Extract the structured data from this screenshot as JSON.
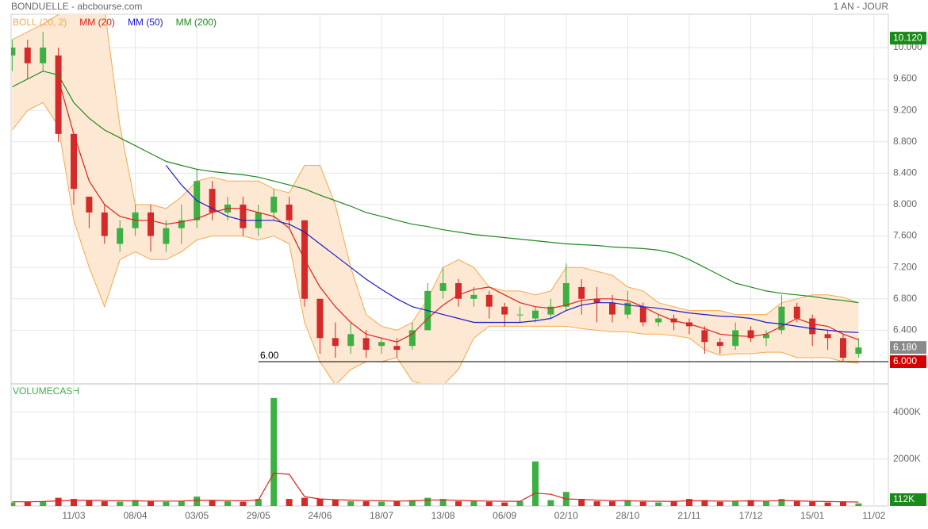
{
  "chart_data": {
    "type": "candlestick",
    "title": "BONDUELLE - abcbourse.com",
    "period": "1 AN - JOUR",
    "categories": [
      null,
      null,
      null,
      null,
      "11/03",
      null,
      null,
      null,
      "08/04",
      null,
      null,
      null,
      "03/05",
      null,
      null,
      null,
      "29/05",
      null,
      null,
      null,
      "24/06",
      null,
      null,
      null,
      "18/07",
      null,
      null,
      null,
      "13/08",
      null,
      null,
      null,
      "06/09",
      null,
      null,
      null,
      "02/10",
      null,
      null,
      null,
      "28/10",
      null,
      null,
      null,
      "21/11",
      null,
      null,
      null,
      "17/12",
      null,
      null,
      null,
      "15/01",
      null,
      null,
      null,
      "11/02"
    ],
    "open": [
      9.9,
      10.0,
      9.8,
      9.9,
      8.9,
      8.1,
      7.9,
      7.5,
      7.7,
      7.9,
      7.5,
      7.7,
      7.8,
      8.2,
      7.9,
      8.0,
      7.7,
      7.9,
      8.0,
      7.8,
      6.8,
      6.3,
      6.2,
      6.3,
      6.2,
      6.2,
      6.2,
      6.4,
      6.9,
      7.0,
      6.8,
      6.85,
      6.7,
      6.6,
      6.55,
      6.6,
      6.7,
      6.95,
      6.8,
      6.75,
      6.6,
      6.7,
      6.5,
      6.55,
      6.5,
      6.4,
      6.25,
      6.2,
      6.4,
      6.3,
      6.4,
      6.7,
      6.55,
      6.35,
      6.3,
      6.1,
      null
    ],
    "high": [
      10.1,
      10.1,
      10.2,
      10.0,
      8.9,
      8.1,
      8.0,
      7.8,
      8.0,
      8.0,
      7.8,
      8.0,
      8.45,
      8.3,
      8.1,
      8.1,
      8.0,
      8.2,
      8.1,
      7.8,
      6.8,
      6.5,
      6.5,
      6.4,
      6.3,
      6.3,
      6.5,
      7.0,
      7.2,
      7.05,
      6.95,
      6.9,
      6.75,
      6.7,
      6.7,
      6.8,
      7.25,
      7.05,
      6.95,
      6.85,
      6.9,
      6.75,
      6.6,
      6.6,
      6.55,
      6.45,
      6.3,
      6.5,
      6.45,
      6.4,
      6.85,
      6.75,
      6.6,
      6.4,
      6.35,
      6.3,
      null
    ],
    "low": [
      9.7,
      9.6,
      9.7,
      8.8,
      8.0,
      7.7,
      7.5,
      7.4,
      7.6,
      7.4,
      7.4,
      7.5,
      7.7,
      7.8,
      7.8,
      7.6,
      7.6,
      7.8,
      7.7,
      6.7,
      6.1,
      6.05,
      6.1,
      6.05,
      6.1,
      6.05,
      6.15,
      6.4,
      6.8,
      6.7,
      6.7,
      6.55,
      6.45,
      6.5,
      6.5,
      6.55,
      6.65,
      6.6,
      6.5,
      6.5,
      6.55,
      6.45,
      6.45,
      6.4,
      6.35,
      6.1,
      6.1,
      6.15,
      6.25,
      6.2,
      6.35,
      6.5,
      6.2,
      6.15,
      6.0,
      6.05,
      null
    ],
    "close": [
      10.0,
      9.8,
      10.0,
      8.9,
      8.2,
      7.9,
      7.6,
      7.7,
      7.9,
      7.6,
      7.7,
      7.8,
      8.3,
      7.9,
      8.0,
      7.7,
      7.9,
      8.1,
      7.8,
      6.8,
      6.3,
      6.2,
      6.35,
      6.15,
      6.25,
      6.15,
      6.4,
      6.9,
      7.0,
      6.8,
      6.85,
      6.7,
      6.6,
      6.6,
      6.65,
      6.7,
      7.0,
      6.8,
      6.75,
      6.6,
      6.75,
      6.5,
      6.55,
      6.5,
      6.45,
      6.25,
      6.2,
      6.4,
      6.3,
      6.35,
      6.7,
      6.55,
      6.35,
      6.3,
      6.05,
      6.18,
      null
    ],
    "up_color": "#3cb043",
    "down_color": "#d42a2a",
    "ylim": [
      5.727,
      10.424
    ],
    "yticks": [
      {
        "value": 6.4,
        "label": "6.400"
      },
      {
        "value": 6.8,
        "label": "6.800"
      },
      {
        "value": 7.2,
        "label": "7.200"
      },
      {
        "value": 7.6,
        "label": "7.600"
      },
      {
        "value": 8.0,
        "label": "8.000"
      },
      {
        "value": 8.4,
        "label": "8.400"
      },
      {
        "value": 8.8,
        "label": "8.800"
      },
      {
        "value": 9.2,
        "label": "9.200"
      },
      {
        "value": 9.6,
        "label": "9.600"
      },
      {
        "value": 10.0,
        "label": "10.000"
      }
    ],
    "grid": true,
    "bollinger": {
      "name": "BOLL (20, 2)",
      "color": "#f5a94e",
      "fill": "#fce8d3",
      "upper": [
        10.1,
        10.2,
        10.3,
        10.42,
        10.8,
        10.9,
        10.5,
        9.0,
        8.0,
        8.0,
        7.95,
        8.1,
        8.3,
        8.35,
        8.3,
        8.3,
        8.3,
        8.2,
        8.15,
        8.5,
        8.5,
        8.0,
        7.2,
        6.6,
        6.45,
        6.4,
        6.5,
        6.8,
        7.2,
        7.3,
        7.2,
        6.95,
        6.9,
        6.9,
        6.85,
        6.9,
        7.2,
        7.2,
        7.15,
        7.1,
        6.95,
        6.9,
        6.75,
        6.7,
        6.65,
        6.65,
        6.65,
        6.6,
        6.6,
        6.6,
        6.75,
        6.8,
        6.85,
        6.85,
        6.82,
        6.75,
        null
      ],
      "lower": [
        8.95,
        9.2,
        9.3,
        9.0,
        7.8,
        7.2,
        6.7,
        7.3,
        7.4,
        7.3,
        7.3,
        7.4,
        7.55,
        7.6,
        7.6,
        7.6,
        7.55,
        7.6,
        7.5,
        6.5,
        6.0,
        5.7,
        5.9,
        6.0,
        6.0,
        6.05,
        5.75,
        5.7,
        5.7,
        5.9,
        6.3,
        6.45,
        6.45,
        6.45,
        6.45,
        6.45,
        6.45,
        6.42,
        6.4,
        6.38,
        6.38,
        6.35,
        6.35,
        6.33,
        6.3,
        6.15,
        6.08,
        6.1,
        6.1,
        6.12,
        6.12,
        6.05,
        6.05,
        6.05,
        6.0,
        5.98,
        null
      ]
    },
    "series": [
      {
        "name": "MM (20)",
        "color": "#e0201c",
        "values": [
          null,
          null,
          null,
          9.6,
          8.9,
          8.3,
          8.0,
          7.85,
          7.8,
          7.8,
          7.75,
          7.78,
          7.82,
          7.9,
          7.95,
          7.95,
          7.9,
          7.85,
          7.7,
          7.3,
          6.95,
          6.7,
          6.5,
          6.35,
          6.3,
          6.25,
          6.35,
          6.55,
          6.72,
          6.85,
          6.92,
          6.95,
          6.85,
          6.75,
          6.7,
          6.68,
          6.72,
          6.78,
          6.8,
          6.8,
          6.78,
          6.7,
          6.6,
          6.52,
          6.48,
          6.42,
          6.35,
          6.33,
          6.32,
          6.35,
          6.45,
          6.55,
          6.48,
          6.45,
          6.35,
          6.28,
          null
        ]
      },
      {
        "name": "MM (50)",
        "color": "#1c1ccc",
        "values": [
          null,
          null,
          null,
          null,
          null,
          null,
          null,
          null,
          null,
          null,
          8.5,
          8.25,
          8.05,
          7.95,
          7.85,
          7.8,
          7.8,
          7.8,
          7.75,
          7.65,
          7.5,
          7.35,
          7.2,
          7.05,
          6.92,
          6.8,
          6.7,
          6.65,
          6.6,
          6.55,
          6.5,
          6.5,
          6.5,
          6.5,
          6.52,
          6.55,
          6.65,
          6.72,
          6.75,
          6.75,
          6.72,
          6.7,
          6.68,
          6.65,
          6.62,
          6.6,
          6.58,
          6.57,
          6.55,
          6.5,
          6.48,
          6.45,
          6.42,
          6.4,
          6.38,
          6.37,
          null
        ]
      },
      {
        "name": "MM (200)",
        "color": "#1f8a1f",
        "values": [
          9.5,
          9.6,
          9.7,
          9.65,
          9.3,
          9.1,
          8.95,
          8.85,
          8.75,
          8.65,
          8.55,
          8.5,
          8.45,
          8.42,
          8.4,
          8.38,
          8.35,
          8.3,
          8.25,
          8.2,
          8.12,
          8.05,
          7.98,
          7.9,
          7.85,
          7.8,
          7.75,
          7.72,
          7.68,
          7.65,
          7.62,
          7.6,
          7.58,
          7.56,
          7.54,
          7.52,
          7.5,
          7.49,
          7.48,
          7.46,
          7.45,
          7.44,
          7.42,
          7.38,
          7.3,
          7.2,
          7.1,
          7.0,
          6.95,
          6.9,
          6.87,
          6.85,
          6.83,
          6.8,
          6.78,
          6.75,
          null
        ]
      }
    ],
    "hline": {
      "value": 6,
      "label": "6.00"
    },
    "price_tags": [
      {
        "value": 10.12,
        "label": "10.120",
        "color": "#1a8a1a"
      },
      {
        "value": 6.18,
        "label": "6.180",
        "color": "#8a8a8a"
      },
      {
        "value": 6,
        "label": "6.000",
        "color": "#d40000"
      }
    ],
    "volume": {
      "title": "VOLUMECASH",
      "values": [
        150,
        180,
        200,
        350,
        300,
        250,
        200,
        180,
        250,
        200,
        180,
        220,
        400,
        250,
        200,
        180,
        300,
        4600,
        300,
        350,
        300,
        250,
        200,
        200,
        180,
        200,
        250,
        350,
        300,
        200,
        200,
        180,
        150,
        200,
        1900,
        250,
        600,
        300,
        200,
        200,
        250,
        180,
        150,
        200,
        300,
        250,
        180,
        200,
        250,
        200,
        300,
        200,
        180,
        150,
        200,
        112,
        null
      ],
      "ma_values": [
        180,
        180,
        190,
        220,
        240,
        240,
        230,
        220,
        220,
        210,
        210,
        210,
        240,
        240,
        230,
        220,
        250,
        1400,
        1350,
        400,
        300,
        270,
        250,
        230,
        220,
        210,
        220,
        250,
        260,
        240,
        220,
        210,
        200,
        200,
        550,
        500,
        300,
        280,
        250,
        230,
        220,
        210,
        200,
        200,
        220,
        220,
        210,
        210,
        220,
        210,
        230,
        220,
        200,
        190,
        180,
        170,
        null
      ],
      "ma_color": "#e0201c",
      "ylim": [
        0,
        5170
      ],
      "yticks": [
        {
          "value": 2000,
          "label": "2000K"
        },
        {
          "value": 4000,
          "label": "4000K"
        }
      ],
      "tag": {
        "value": 112,
        "label": "112K",
        "color": "#1a8a1a"
      }
    }
  }
}
